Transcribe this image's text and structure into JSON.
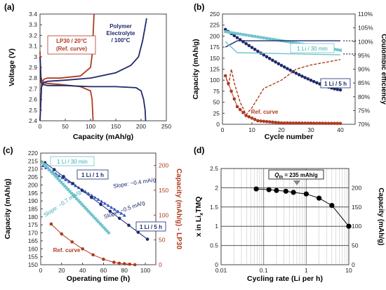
{
  "panels": [
    "(a)",
    "(b)",
    "(c)",
    "(d)"
  ],
  "chart_data": [
    {
      "panel": "(a)",
      "type": "line",
      "xlabel": "Capacity (mAh/g)",
      "ylabel": "Voltage (V)",
      "xlim": [
        0,
        250
      ],
      "ylim": [
        2.4,
        3.4
      ],
      "xticks": [
        0,
        50,
        100,
        150,
        200,
        250
      ],
      "yticks": [
        2.4,
        2.5,
        2.6,
        2.7,
        2.8,
        2.9,
        3.0,
        3.1,
        3.2,
        3.3,
        3.4
      ],
      "ytick_labels": [
        "2.4",
        "2.5",
        "2.6",
        "2.7",
        "2.8",
        "2.9",
        "3",
        "3.1",
        "3.2",
        "3.3",
        "3.4"
      ],
      "annotations": [
        {
          "text": "LP30 / 20°C",
          "color": "#b03a20"
        },
        {
          "text": "(Ref. curve)",
          "color": "#b03a20"
        },
        {
          "text": "Polymer",
          "color": "#1f2a6b"
        },
        {
          "text": "Electrolyte",
          "color": "#1f2a6b"
        },
        {
          "text": "/ 100°C",
          "color": "#1f2a6b"
        }
      ],
      "series": [
        {
          "color": "#b03a20",
          "x": [
            0,
            3,
            8,
            15,
            40,
            80,
            100,
            104,
            105,
            106,
            107
          ],
          "y": [
            2.4,
            2.75,
            2.79,
            2.8,
            2.8,
            2.82,
            2.9,
            3.05,
            3.2,
            3.3,
            3.4
          ]
        },
        {
          "color": "#b03a20",
          "x": [
            0,
            2,
            6,
            15,
            40,
            80,
            100,
            103,
            104,
            105
          ],
          "y": [
            3.05,
            2.8,
            2.76,
            2.75,
            2.74,
            2.72,
            2.68,
            2.6,
            2.5,
            2.4
          ]
        },
        {
          "color": "#1f2a6b",
          "x": [
            0,
            3,
            8,
            15,
            50,
            100,
            150,
            180,
            195,
            203,
            208,
            211
          ],
          "y": [
            2.4,
            2.72,
            2.76,
            2.77,
            2.78,
            2.8,
            2.85,
            2.92,
            3.0,
            3.15,
            3.28,
            3.36
          ]
        },
        {
          "color": "#1f2a6b",
          "x": [
            0,
            2,
            6,
            15,
            50,
            100,
            150,
            190,
            200,
            205,
            208,
            209
          ],
          "y": [
            3.0,
            2.76,
            2.74,
            2.73,
            2.73,
            2.72,
            2.72,
            2.71,
            2.68,
            2.6,
            2.5,
            2.4
          ]
        }
      ]
    },
    {
      "panel": "(b)",
      "type": "line",
      "xlabel": "Cycle number",
      "ylabel": "Capacity (mAh/g)",
      "y2label": "Coulombic efficiency",
      "xlim": [
        0,
        45
      ],
      "ylim": [
        0,
        250
      ],
      "y2lim": [
        70,
        110
      ],
      "xticks": [
        0,
        10,
        20,
        30,
        40
      ],
      "yticks": [
        0,
        25,
        50,
        75,
        100,
        125,
        150,
        175,
        200,
        225,
        250
      ],
      "y2ticks": [
        "70%",
        "75%",
        "80%",
        "85%",
        "90%",
        "95%",
        "100%",
        "105%",
        "110%"
      ],
      "annotations": [
        {
          "text": "1 Li / 30 min",
          "color": "#3aa9b3"
        },
        {
          "text": "1 Li / 5 h",
          "color": "#1f2a6b"
        },
        {
          "text": "Ref. curve",
          "color": "#b03a20"
        }
      ],
      "series": [
        {
          "kind": "capacity",
          "color": "#1f2a6b",
          "x": [
            1,
            40
          ],
          "y": [
            215,
            78
          ],
          "points": 40
        },
        {
          "kind": "capacity",
          "color": "#6fc3cc",
          "x": [
            1,
            40
          ],
          "y": [
            210,
            168
          ],
          "points": 40
        },
        {
          "kind": "capacity",
          "color": "#b03a20",
          "x": [
            1,
            3,
            5,
            8,
            12,
            20,
            40
          ],
          "y": [
            110,
            75,
            40,
            20,
            8,
            3,
            2
          ]
        },
        {
          "kind": "ce",
          "color": "#1f2a6b",
          "x": [
            1,
            5,
            40
          ],
          "y": [
            98,
            100.3,
            100.3
          ]
        },
        {
          "kind": "ce",
          "color": "#6fc3cc",
          "x": [
            1,
            5,
            40
          ],
          "y": [
            100,
            96,
            95.2
          ]
        },
        {
          "kind": "ce",
          "color": "#b03a20",
          "x": [
            1,
            2,
            3,
            4,
            6,
            8,
            10,
            14,
            20,
            25,
            30,
            35,
            40
          ],
          "y": [
            88,
            84,
            90,
            85,
            78,
            73.5,
            76,
            83,
            86,
            90,
            91.5,
            92.5,
            93.5
          ]
        }
      ]
    },
    {
      "panel": "(c)",
      "type": "line",
      "xlabel": "Operating time (h)",
      "ylabel": "Capacity (mAh/g)",
      "y2label": "Capacity (mAh/g) - LP30",
      "xlim": [
        0,
        110
      ],
      "ylim": [
        150,
        220
      ],
      "y2lim": [
        0,
        225
      ],
      "xticks": [
        0,
        20,
        40,
        60,
        80,
        100
      ],
      "yticks": [
        150,
        155,
        160,
        165,
        170,
        175,
        180,
        185,
        190,
        195,
        200,
        205,
        210,
        215,
        220
      ],
      "y2ticks": [
        0,
        50,
        100,
        150,
        200
      ],
      "annotations": [
        {
          "text": "1 Li / 30 min",
          "color": "#3aa9b3"
        },
        {
          "text": "1 Li / 1 h",
          "color": "#1f2a6b"
        },
        {
          "text": "1 Li / 5 h",
          "color": "#1f2a6b"
        },
        {
          "text": "Slope: ~0.4 mA/g",
          "color": "#1f2a6b"
        },
        {
          "text": "Slope: ~0.5 mA/g",
          "color": "#1f2a6b"
        },
        {
          "text": "Slope: ~0.7 mA/g",
          "color": "#3aa9b3"
        },
        {
          "text": "Ref. curve",
          "color": "#b03a20"
        }
      ],
      "series": [
        {
          "color": "#3b5bbf",
          "label": "1 Li / 1 h",
          "x": [
            2,
            80
          ],
          "y": [
            212,
            181
          ],
          "points": 26
        },
        {
          "color": "#1f2a6b",
          "label": "1 Li / 5 h",
          "x": [
            4,
            102
          ],
          "y": [
            214,
            166
          ],
          "points": 12
        },
        {
          "color": "#6fc3cc",
          "label": "1 Li / 30 min",
          "x": [
            2,
            65
          ],
          "y": [
            214,
            170
          ],
          "points": 40
        },
        {
          "color": "#b03a20",
          "label": "Ref. curve",
          "axis": "right",
          "x": [
            10,
            20,
            30,
            40,
            50,
            60,
            70,
            75,
            80,
            85,
            90
          ],
          "y": [
            82,
            62,
            46,
            32,
            20,
            11,
            5,
            3,
            2,
            1,
            0
          ]
        }
      ]
    },
    {
      "panel": "(d)",
      "type": "scatter",
      "xlabel": "Cycling rate (Li per h)",
      "ylabel": "x in LixTMQ",
      "ylabel_main": "x in Li",
      "ylabel_sub": "x",
      "ylabel_tail": "TMQ",
      "y2label": "Capacity (mAh/g)",
      "xscale": "log",
      "xlim": [
        0.01,
        10
      ],
      "ylim": [
        0,
        2.5
      ],
      "y2lim": [
        0,
        250
      ],
      "xticks": [
        "0.01",
        "0.1",
        "1",
        "10"
      ],
      "yticks": [
        "0",
        "0.5",
        "1",
        "1.5",
        "2",
        "2.5"
      ],
      "y2ticks": [
        "0",
        "50",
        "100",
        "150",
        "200"
      ],
      "annotation": {
        "prefix": "Q",
        "sub": "th",
        "suffix": " = 235 mAh/g"
      },
      "x": [
        0.067,
        0.133,
        0.2,
        0.333,
        0.5,
        1,
        2,
        4,
        10
      ],
      "y": [
        1.97,
        1.95,
        1.93,
        1.91,
        1.88,
        1.84,
        1.73,
        1.54,
        1.0
      ]
    }
  ]
}
